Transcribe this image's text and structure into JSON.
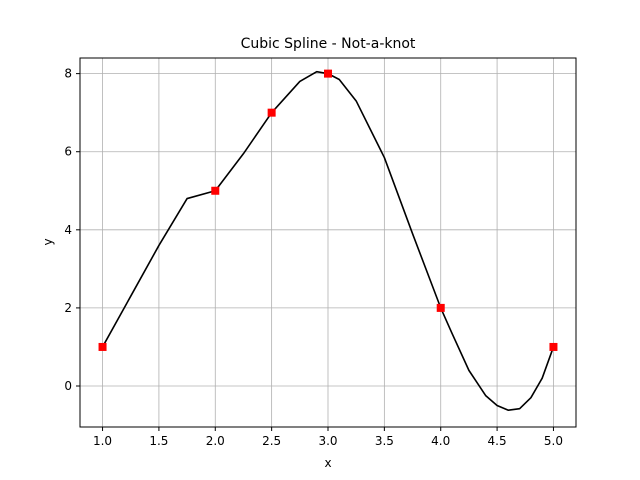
{
  "chart_data": {
    "type": "line",
    "title": "Cubic Spline - Not-a-knot",
    "xlabel": "x",
    "ylabel": "y",
    "xlim": [
      0.8,
      5.2
    ],
    "ylim": [
      -1.05,
      8.4
    ],
    "xticks": [
      1.0,
      1.5,
      2.0,
      2.5,
      3.0,
      3.5,
      4.0,
      4.5,
      5.0
    ],
    "xtick_labels": [
      "1.0",
      "1.5",
      "2.0",
      "2.5",
      "3.0",
      "3.5",
      "4.0",
      "4.5",
      "5.0"
    ],
    "yticks": [
      0,
      2,
      4,
      6,
      8
    ],
    "ytick_labels": [
      "0",
      "2",
      "4",
      "6",
      "8"
    ],
    "grid": true,
    "series": [
      {
        "kind": "curve",
        "color": "#000000",
        "x": [
          1.0,
          1.25,
          1.5,
          1.75,
          2.0,
          2.25,
          2.5,
          2.75,
          2.9,
          3.0,
          3.1,
          3.25,
          3.5,
          3.75,
          4.0,
          4.1,
          4.25,
          4.4,
          4.5,
          4.6,
          4.7,
          4.8,
          4.9,
          5.0
        ],
        "y": [
          1.0,
          2.3,
          3.6,
          4.8,
          5.0,
          5.95,
          7.0,
          7.8,
          8.05,
          8.0,
          7.85,
          7.3,
          5.85,
          3.9,
          2.0,
          1.35,
          0.4,
          -0.25,
          -0.5,
          -0.62,
          -0.58,
          -0.3,
          0.2,
          1.0
        ]
      },
      {
        "kind": "points",
        "color": "#ff0000",
        "marker": "square",
        "x": [
          1.0,
          2.0,
          2.5,
          3.0,
          4.0,
          5.0
        ],
        "y": [
          1,
          5,
          7,
          8,
          2,
          1
        ]
      }
    ]
  }
}
